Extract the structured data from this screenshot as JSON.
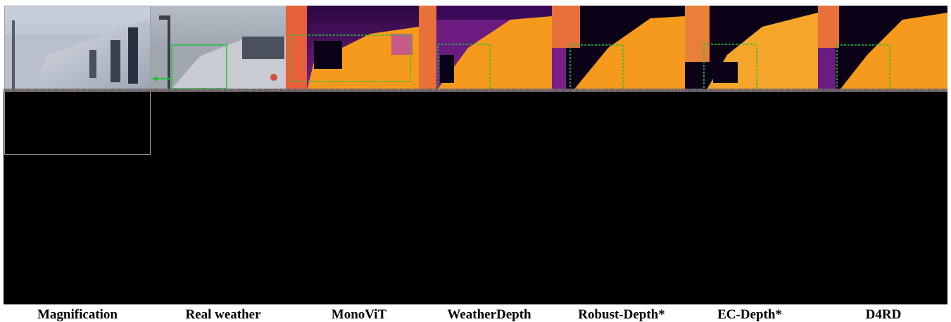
{
  "captions": {
    "magnification": "Magnification",
    "real_weather": "Real weather",
    "monovit": "MonoViT",
    "weatherdepth": "WeatherDepth",
    "robust_depth": "Robust-Depth*",
    "ec_depth": "EC-Depth*",
    "d4rd": "D4RD"
  },
  "colors": {
    "highlight_box": "#22c43a",
    "depth_far": "#0b0218",
    "depth_mid": "#7a1f8a",
    "depth_near": "#f59a1c",
    "background": "#000000"
  }
}
